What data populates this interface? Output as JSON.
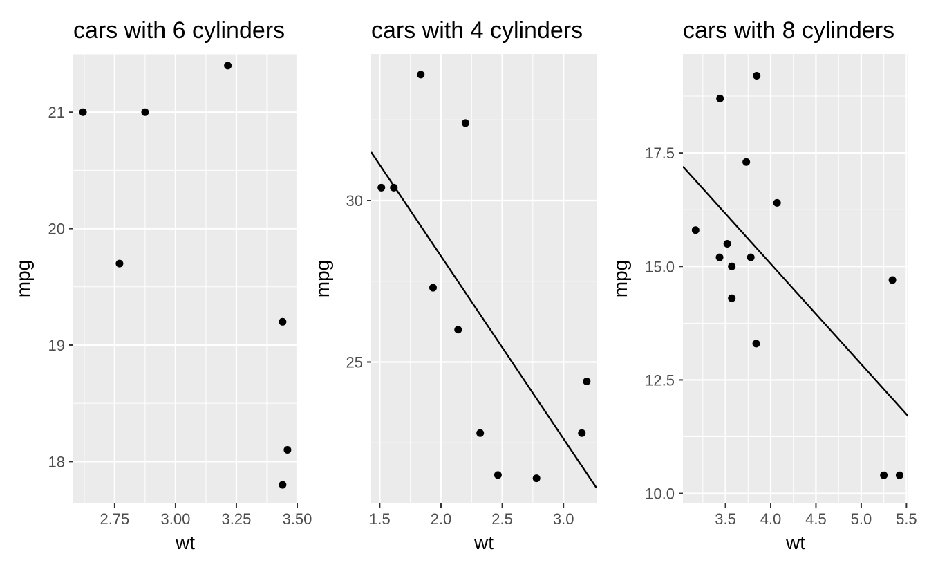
{
  "figure": {
    "background": "#ffffff",
    "panel_background": "#ebebeb",
    "grid_color": "#ffffff",
    "point_color": "#000000",
    "line_color": "#000000",
    "tick_label_color": "#4d4d4d"
  },
  "chart_data": [
    {
      "type": "scatter",
      "title": "cars with 6 cylinders",
      "xlabel": "wt",
      "ylabel": "mpg",
      "xlim": [
        2.58,
        3.5
      ],
      "ylim": [
        17.64,
        21.5
      ],
      "xticks": [
        2.75,
        3.0,
        3.25,
        3.5
      ],
      "xtick_labels": [
        "2.75",
        "3.00",
        "3.25",
        "3.50"
      ],
      "yticks": [
        18,
        19,
        20,
        21
      ],
      "ytick_labels": [
        "18",
        "19",
        "20",
        "21"
      ],
      "grid": true,
      "points": [
        {
          "x": 2.62,
          "y": 21.0
        },
        {
          "x": 2.875,
          "y": 21.0
        },
        {
          "x": 3.215,
          "y": 21.4
        },
        {
          "x": 2.77,
          "y": 19.7
        },
        {
          "x": 3.44,
          "y": 19.2
        },
        {
          "x": 3.46,
          "y": 18.1
        },
        {
          "x": 3.44,
          "y": 17.8
        }
      ]
    },
    {
      "type": "scatter",
      "title": "cars with 4 cylinders",
      "xlabel": "wt",
      "ylabel": "mpg",
      "xlim": [
        1.43,
        3.27
      ],
      "ylim": [
        20.62,
        34.54
      ],
      "xticks": [
        1.5,
        2.0,
        2.5,
        3.0
      ],
      "xtick_labels": [
        "1.5",
        "2.0",
        "2.5",
        "3.0"
      ],
      "yticks": [
        25,
        30
      ],
      "ytick_labels": [
        "25",
        "30"
      ],
      "grid": true,
      "points": [
        {
          "x": 1.835,
          "y": 33.9
        },
        {
          "x": 2.2,
          "y": 32.4
        },
        {
          "x": 1.513,
          "y": 30.4
        },
        {
          "x": 1.615,
          "y": 30.4
        },
        {
          "x": 1.935,
          "y": 27.3
        },
        {
          "x": 2.14,
          "y": 26.0
        },
        {
          "x": 3.19,
          "y": 24.4
        },
        {
          "x": 2.32,
          "y": 22.8
        },
        {
          "x": 3.15,
          "y": 22.8
        },
        {
          "x": 2.465,
          "y": 21.5
        },
        {
          "x": 2.78,
          "y": 21.4
        }
      ],
      "trend_line": {
        "x": [
          1.43,
          3.27
        ],
        "y": [
          31.5,
          21.1
        ]
      }
    },
    {
      "type": "scatter",
      "title": "cars with 8 cylinders",
      "xlabel": "wt",
      "ylabel": "mpg",
      "xlim": [
        3.03,
        5.52
      ],
      "ylim": [
        9.78,
        19.68
      ],
      "xticks": [
        3.5,
        4.0,
        4.5,
        5.0,
        5.5
      ],
      "xtick_labels": [
        "3.5",
        "4.0",
        "4.5",
        "5.0",
        "5.5"
      ],
      "yticks": [
        10.0,
        12.5,
        15.0,
        17.5
      ],
      "ytick_labels": [
        "10.0",
        "12.5",
        "15.0",
        "17.5"
      ],
      "grid": true,
      "points": [
        {
          "x": 3.845,
          "y": 19.2
        },
        {
          "x": 3.44,
          "y": 18.7
        },
        {
          "x": 3.73,
          "y": 17.3
        },
        {
          "x": 4.07,
          "y": 16.4
        },
        {
          "x": 3.17,
          "y": 15.8
        },
        {
          "x": 3.52,
          "y": 15.5
        },
        {
          "x": 3.435,
          "y": 15.2
        },
        {
          "x": 3.78,
          "y": 15.2
        },
        {
          "x": 3.57,
          "y": 15.0
        },
        {
          "x": 5.345,
          "y": 14.7
        },
        {
          "x": 3.57,
          "y": 14.3
        },
        {
          "x": 3.84,
          "y": 13.3
        },
        {
          "x": 5.25,
          "y": 10.4
        },
        {
          "x": 5.424,
          "y": 10.4
        }
      ],
      "trend_line": {
        "x": [
          3.03,
          5.52
        ],
        "y": [
          17.2,
          11.7
        ]
      }
    }
  ]
}
